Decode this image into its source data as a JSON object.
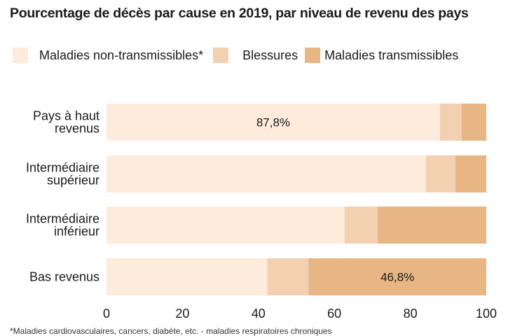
{
  "chart_data": {
    "type": "bar",
    "orientation": "horizontal",
    "stacked": true,
    "title": "Pourcentage de décès par cause en 2019, par niveau de revenu des pays",
    "xlabel": "",
    "ylabel": "",
    "xlim": [
      0,
      100
    ],
    "xticks": [
      0,
      20,
      40,
      60,
      80,
      100
    ],
    "grid": false,
    "legend_position": "top",
    "categories": [
      [
        "Pays à haut",
        "revenus"
      ],
      [
        "Intermédiaire",
        "supérieur"
      ],
      [
        "Intermédiaire",
        "inférieur"
      ],
      [
        "Bas revenus"
      ]
    ],
    "series": [
      {
        "name": "Maladies non-transmissibles*",
        "color": "#fdebdc",
        "values": [
          87.8,
          84.1,
          62.7,
          42.3
        ]
      },
      {
        "name": "Blessures",
        "color": "#f2d0b0",
        "values": [
          5.7,
          7.8,
          8.7,
          10.9
        ]
      },
      {
        "name": "Maladies transmissibles",
        "color": "#e8b584",
        "values": [
          6.5,
          8.1,
          28.6,
          46.8
        ]
      }
    ],
    "annotations": [
      {
        "text": "87,8%",
        "category_index": 0,
        "series_index": 0
      },
      {
        "text": "46,8%",
        "category_index": 3,
        "series_index": 2
      }
    ]
  },
  "legend": {
    "items": [
      {
        "label": "Maladies non-transmissibles*",
        "color": "#fdebdc"
      },
      {
        "label": "Blessures",
        "color": "#f2d0b0"
      },
      {
        "label": "Maladies transmissibles",
        "color": "#e8b584"
      }
    ]
  },
  "footnote": "*Maladies cardiovasculaires, cancers, diabète, etc. - maladies respiratoires chroniques"
}
